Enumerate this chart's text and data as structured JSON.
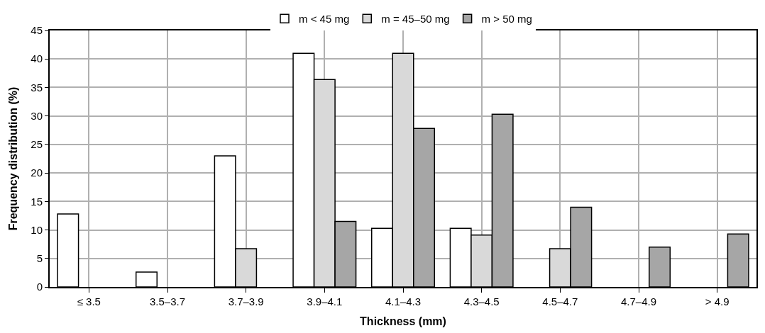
{
  "chart_data": {
    "type": "bar",
    "xlabel": "Thickness (mm)",
    "ylabel": "Frequency distribution (%)",
    "categories": [
      "≤ 3.5",
      "3.5–3.7",
      "3.7–3.9",
      "3.9–4.1",
      "4.1–4.3",
      "4.3–4.5",
      "4.5–4.7",
      "4.7–4.9",
      "> 4.9"
    ],
    "series": [
      {
        "name": "m < 45 mg",
        "color": "#ffffff",
        "values": [
          12.8,
          2.6,
          23,
          41,
          10.3,
          10.3,
          null,
          null,
          null
        ]
      },
      {
        "name": "m = 45–50 mg",
        "color": "#d9d9d9",
        "values": [
          null,
          null,
          6.7,
          36.4,
          41,
          9.1,
          6.7,
          null,
          null
        ]
      },
      {
        "name": "m > 50 mg",
        "color": "#a6a6a6",
        "values": [
          null,
          null,
          null,
          11.5,
          27.8,
          30.3,
          14,
          7,
          9.3
        ]
      }
    ],
    "ylim": [
      0,
      45
    ],
    "yticks": [
      0,
      5,
      10,
      15,
      20,
      25,
      30,
      35,
      40,
      45
    ],
    "grid": true,
    "legend": "top"
  }
}
